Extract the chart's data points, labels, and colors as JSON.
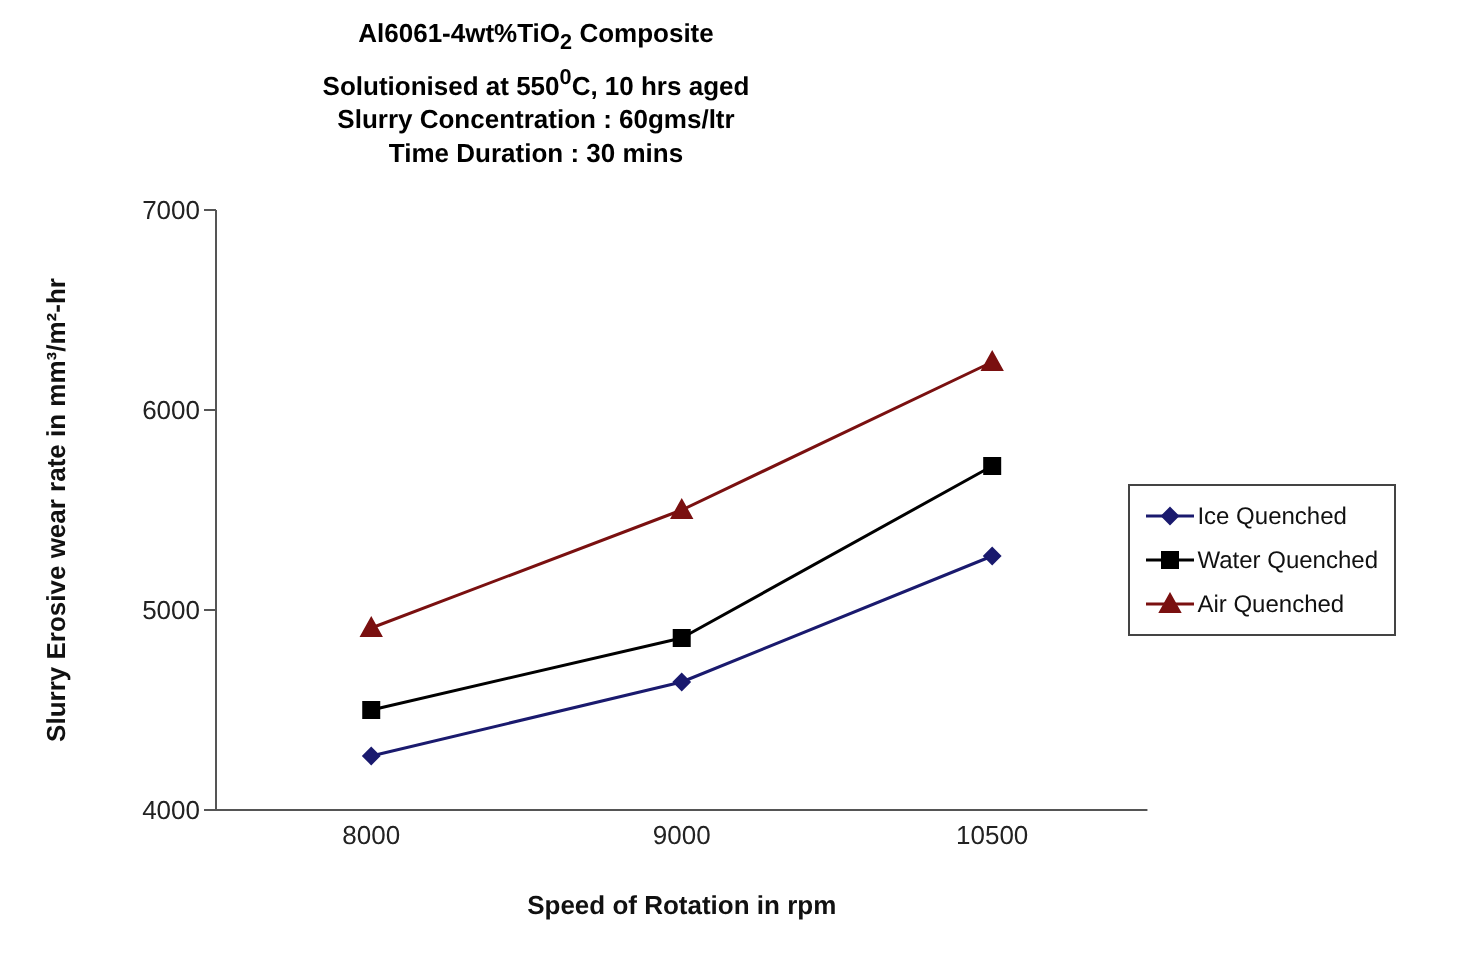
{
  "chart_data": {
    "type": "line",
    "title": "Al6061-4wt%TiO$_{2}$ Composite",
    "subtitle": "Solutionised  at 550$^{0}$C, 10 hrs aged\nSlurry Concentration : 60gms/ltr\nTime Duration : 30 mins",
    "xlabel": "Speed of Rotation in rpm",
    "ylabel": "Slurry Erosive wear rate in mm³/m²-hr",
    "categories": [
      "8000",
      "9000",
      "10500"
    ],
    "series": [
      {
        "name": "Ice Quenched",
        "color": "#1a1a6e",
        "marker": "diamond",
        "values": [
          4270,
          4640,
          5270
        ]
      },
      {
        "name": "Water Quenched",
        "color": "#000000",
        "marker": "square",
        "values": [
          4500,
          4860,
          5720
        ]
      },
      {
        "name": "Air Quenched",
        "color": "#7a1010",
        "marker": "triangle",
        "values": [
          4910,
          5500,
          6240
        ]
      }
    ],
    "ylim": [
      4000,
      7000
    ],
    "yticks": [
      4000,
      5000,
      6000,
      7000
    ],
    "grid": false,
    "legend": "right",
    "line_style": "solid"
  }
}
